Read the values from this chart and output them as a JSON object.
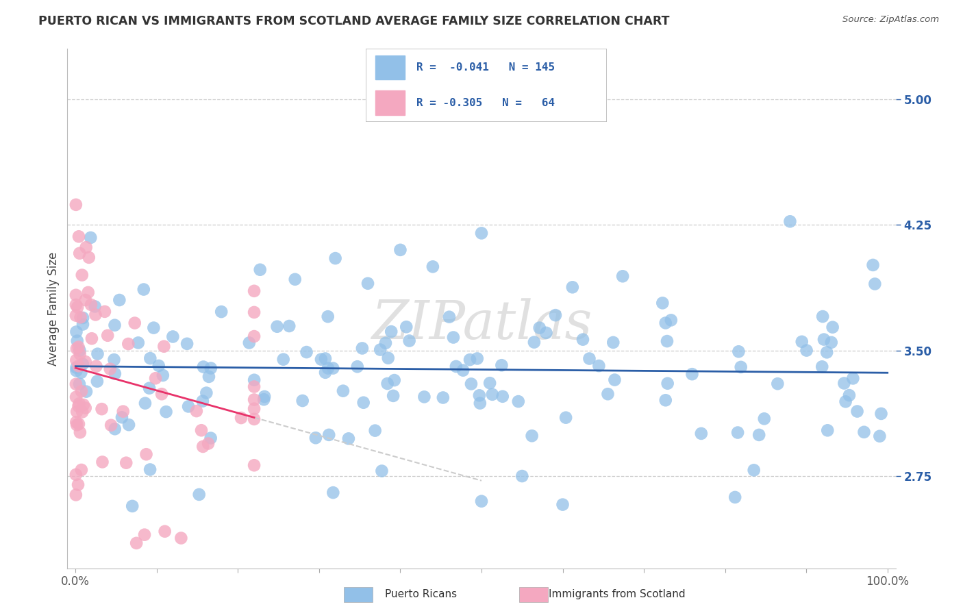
{
  "title": "PUERTO RICAN VS IMMIGRANTS FROM SCOTLAND AVERAGE FAMILY SIZE CORRELATION CHART",
  "source": "Source: ZipAtlas.com",
  "ylabel": "Average Family Size",
  "watermark": "ZIPatlas",
  "right_yticks": [
    2.75,
    3.5,
    4.25,
    5.0
  ],
  "xlim": [
    -0.01,
    1.01
  ],
  "ylim": [
    2.2,
    5.3
  ],
  "blue_color": "#92C0E8",
  "pink_color": "#F4A8C0",
  "blue_line_color": "#2B5EA7",
  "pink_line_color": "#E8336A",
  "title_color": "#333333",
  "source_color": "#555555",
  "legend_text_color": "#2B5EA7",
  "legend_r1": "R = -0.041   N = 145",
  "legend_r2": "R = -0.305   N =  64",
  "bottom_label1": "Puerto Ricans",
  "bottom_label2": "Immigrants from Scotland"
}
